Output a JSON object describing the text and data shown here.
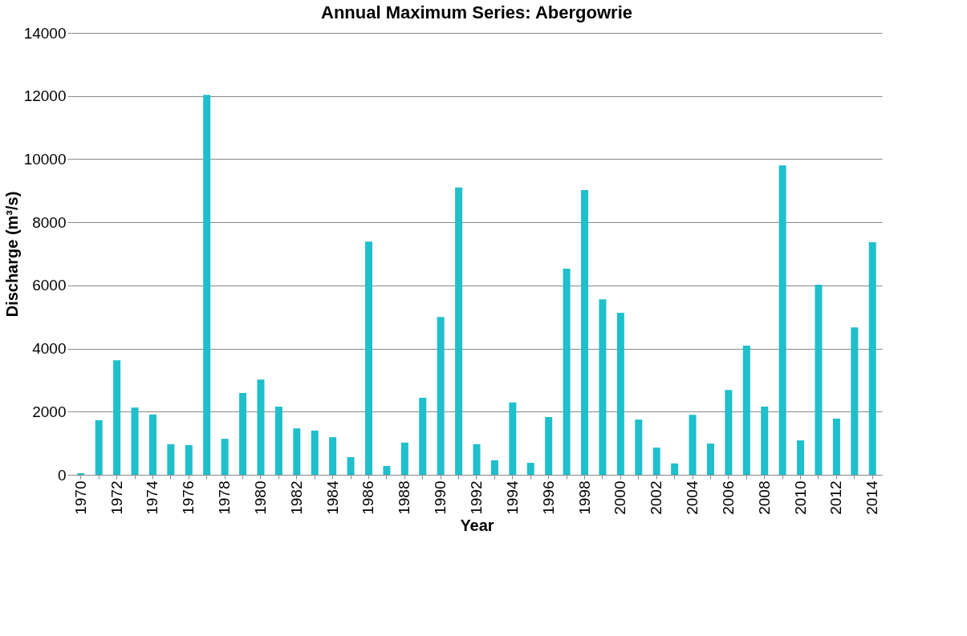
{
  "chart_data": {
    "type": "bar",
    "title": "Annual Maximum Series: Abergowrie",
    "xlabel": "Year",
    "ylabel": "Discharge (m³/s)",
    "categories": [
      "1970",
      null,
      "1972",
      null,
      "1974",
      null,
      "1976",
      null,
      "1978",
      null,
      "1980",
      null,
      "1982",
      null,
      "1984",
      null,
      "1986",
      null,
      "1988",
      null,
      "1990",
      null,
      "1992",
      null,
      "1994",
      null,
      "1996",
      null,
      "1998",
      null,
      "2000",
      null,
      "2002",
      null,
      "2004",
      null,
      "2006",
      null,
      "2008",
      null,
      "2010",
      null,
      "2012",
      null,
      "2014"
    ],
    "values": [
      50,
      1730,
      3630,
      2130,
      1910,
      970,
      940,
      12040,
      1140,
      2590,
      3020,
      2160,
      1470,
      1400,
      1190,
      560,
      7390,
      280,
      1020,
      2440,
      5000,
      9100,
      970,
      460,
      2290,
      380,
      1830,
      6530,
      9020,
      5560,
      5130,
      1750,
      860,
      360,
      1900,
      990,
      2690,
      4090,
      2160,
      9800,
      1090,
      6020,
      1780,
      4670,
      7370
    ],
    "color": "#1fbfcc",
    "ylim": [
      0,
      14000
    ],
    "yticks": [
      0,
      2000,
      4000,
      6000,
      8000,
      10000,
      12000,
      14000
    ],
    "grid": "y"
  }
}
